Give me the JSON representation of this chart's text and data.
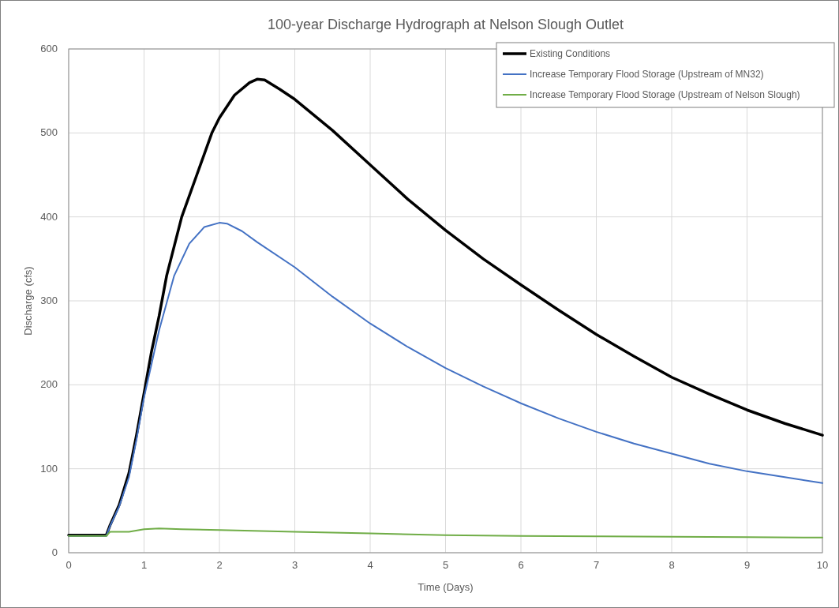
{
  "chart_data": {
    "type": "line",
    "title": "100-year Discharge Hydrograph at Nelson Slough Outlet",
    "xlabel": "Time (Days)",
    "ylabel": "Discharge (cfs)",
    "xlim": [
      0,
      10
    ],
    "xticks": [
      0,
      1,
      2,
      3,
      4,
      5,
      6,
      7,
      8,
      9,
      10
    ],
    "ylim": [
      0,
      600
    ],
    "yticks": [
      0,
      100,
      200,
      300,
      400,
      500,
      600
    ],
    "grid": true,
    "legend": "top right",
    "marker": "none",
    "line_style": "solid",
    "series": [
      {
        "name": "Existing Conditions",
        "color": "#000000",
        "x": [
          0,
          0.5,
          0.55,
          0.67,
          0.8,
          0.9,
          1.0,
          1.1,
          1.2,
          1.3,
          1.5,
          1.7,
          1.9,
          2.0,
          2.2,
          2.4,
          2.5,
          2.6,
          2.8,
          3,
          3.5,
          4,
          4.5,
          5,
          5.5,
          6,
          6.5,
          7,
          7.5,
          8,
          8.5,
          9,
          9.5,
          10
        ],
        "values": [
          21,
          21,
          33,
          57,
          95,
          140,
          190,
          240,
          282,
          330,
          400,
          450,
          500,
          518,
          545,
          560,
          564,
          563,
          552,
          540,
          503,
          462,
          421,
          384,
          350,
          319,
          289,
          260,
          234,
          209,
          189,
          170,
          154,
          140
        ]
      },
      {
        "name": "Increase Temporary Flood Storage (Upstream of MN32)",
        "color": "#4472c4",
        "x": [
          0,
          0.5,
          0.55,
          0.67,
          0.8,
          0.9,
          1.0,
          1.2,
          1.4,
          1.6,
          1.8,
          2.0,
          2.1,
          2.3,
          2.5,
          3,
          3.5,
          4,
          4.5,
          5,
          5.5,
          6,
          6.5,
          7,
          7.5,
          8,
          8.5,
          9,
          9.5,
          10
        ],
        "values": [
          20,
          20,
          32,
          55,
          90,
          135,
          185,
          265,
          330,
          368,
          388,
          393,
          392,
          383,
          370,
          340,
          305,
          273,
          245,
          220,
          198,
          178,
          160,
          144,
          130,
          118,
          106,
          97,
          90,
          83
        ]
      },
      {
        "name": "Increase Temporary Flood Storage (Upstream of Nelson Slough)",
        "color": "#70ad47",
        "x": [
          0,
          0.5,
          0.55,
          0.8,
          1.0,
          1.2,
          1.5,
          2,
          3,
          4,
          5,
          6,
          7,
          8,
          9,
          10
        ],
        "values": [
          20,
          20,
          25,
          25,
          28,
          29,
          28,
          27,
          25,
          23,
          21,
          20,
          19.5,
          19,
          18.5,
          18
        ]
      }
    ]
  }
}
